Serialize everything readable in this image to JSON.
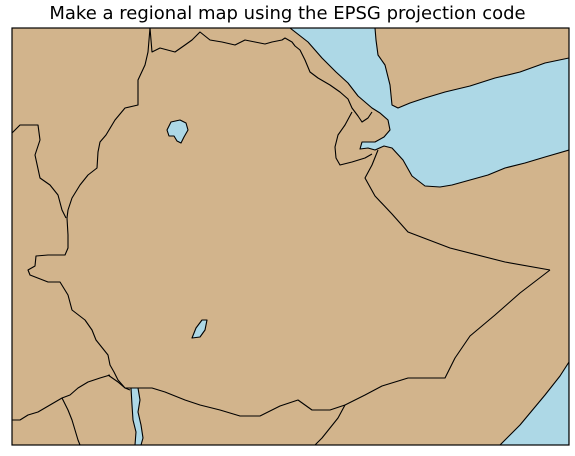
{
  "title": "Make a regional map using the EPSG projection code",
  "colors": {
    "land": "#d2b48c",
    "water": "#add8e6",
    "border": "#000000",
    "background": "#ffffff"
  }
}
